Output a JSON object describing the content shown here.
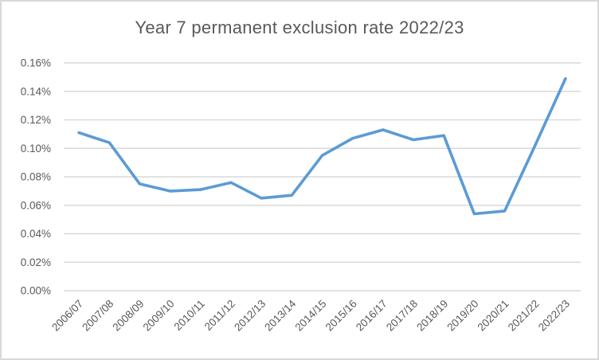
{
  "chart_data": {
    "type": "line",
    "title": "Year 7 permanent exclusion rate 2022/23",
    "categories": [
      "2006/07",
      "2007/08",
      "2008/09",
      "2009/10",
      "2010/11",
      "2011/12",
      "2012/13",
      "2013/14",
      "2014/15",
      "2015/16",
      "2016/17",
      "2017/18",
      "2018/19",
      "2019/20",
      "2020/21",
      "2021/22",
      "2022/23"
    ],
    "series": [
      {
        "name": "Year 7 permanent exclusion rate",
        "values": [
          0.111,
          0.104,
          0.075,
          0.07,
          0.071,
          0.076,
          0.065,
          0.067,
          0.095,
          0.107,
          0.113,
          0.106,
          0.109,
          0.054,
          0.056,
          0.102,
          0.149
        ]
      }
    ],
    "unit": "%",
    "xlabel": "",
    "ylabel": "",
    "ylim": [
      0,
      0.16
    ],
    "ytick_step": 0.02,
    "ytick_labels_top_to_bottom": [
      "0.16%",
      "0.14%",
      "0.12%",
      "0.10%",
      "0.08%",
      "0.06%",
      "0.04%",
      "0.02%",
      "0.00%"
    ],
    "grid": true,
    "legend_position": "none",
    "x_labels_rotation_deg": 45,
    "colors": {
      "line": "#5B9BD5",
      "gridline": "#D9D9D9",
      "text": "#595959",
      "border": "#D9D9D9",
      "background": "#FFFFFF"
    }
  }
}
